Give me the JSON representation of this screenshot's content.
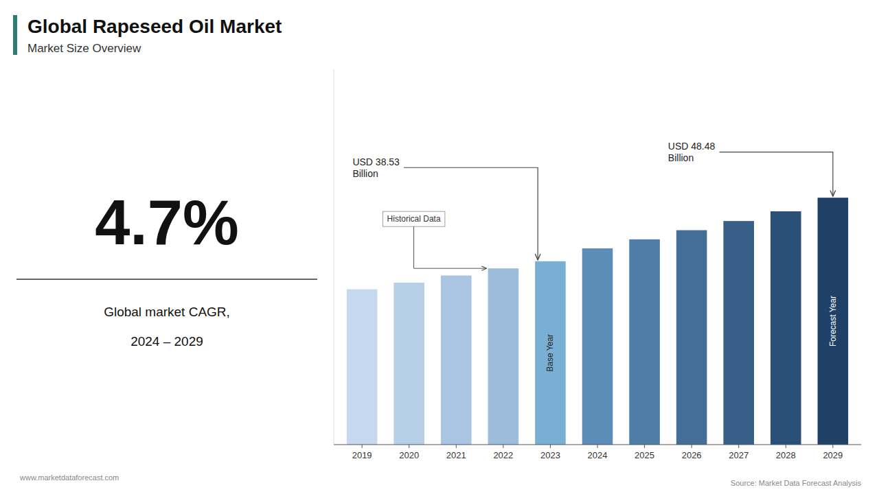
{
  "chart_data": {
    "type": "bar",
    "title": "Global Rapeseed Oil Market",
    "subtitle": "Market Size Overview",
    "categories": [
      2019,
      2020,
      2021,
      2022,
      2023,
      2024,
      2025,
      2026,
      2027,
      2028,
      2029
    ],
    "values": [
      30.5,
      31.8,
      33.2,
      34.6,
      36.0,
      38.53,
      40.3,
      42.1,
      43.9,
      45.8,
      48.48
    ],
    "colors": [
      "#c5d8ee",
      "#b8cfe8",
      "#aac5e2",
      "#9dbcdc",
      "#7aafd4",
      "#5b8db8",
      "#4f7da8",
      "#436e98",
      "#375f88",
      "#2b5078",
      "#1f4168"
    ],
    "ylim": [
      0,
      73.6896
    ],
    "tick_labels": "x",
    "grid": false,
    "annotations": [
      "4.7%",
      "Global market CAGR,",
      "2024 – 2029",
      "Historical Data",
      "Base Year",
      "Forecast Year",
      "USD 38.53\nBillion",
      "USD 48.48\nBillion",
      "www.marketdataforecast.com",
      "Source: Market Data Forecast Analysis"
    ]
  }
}
